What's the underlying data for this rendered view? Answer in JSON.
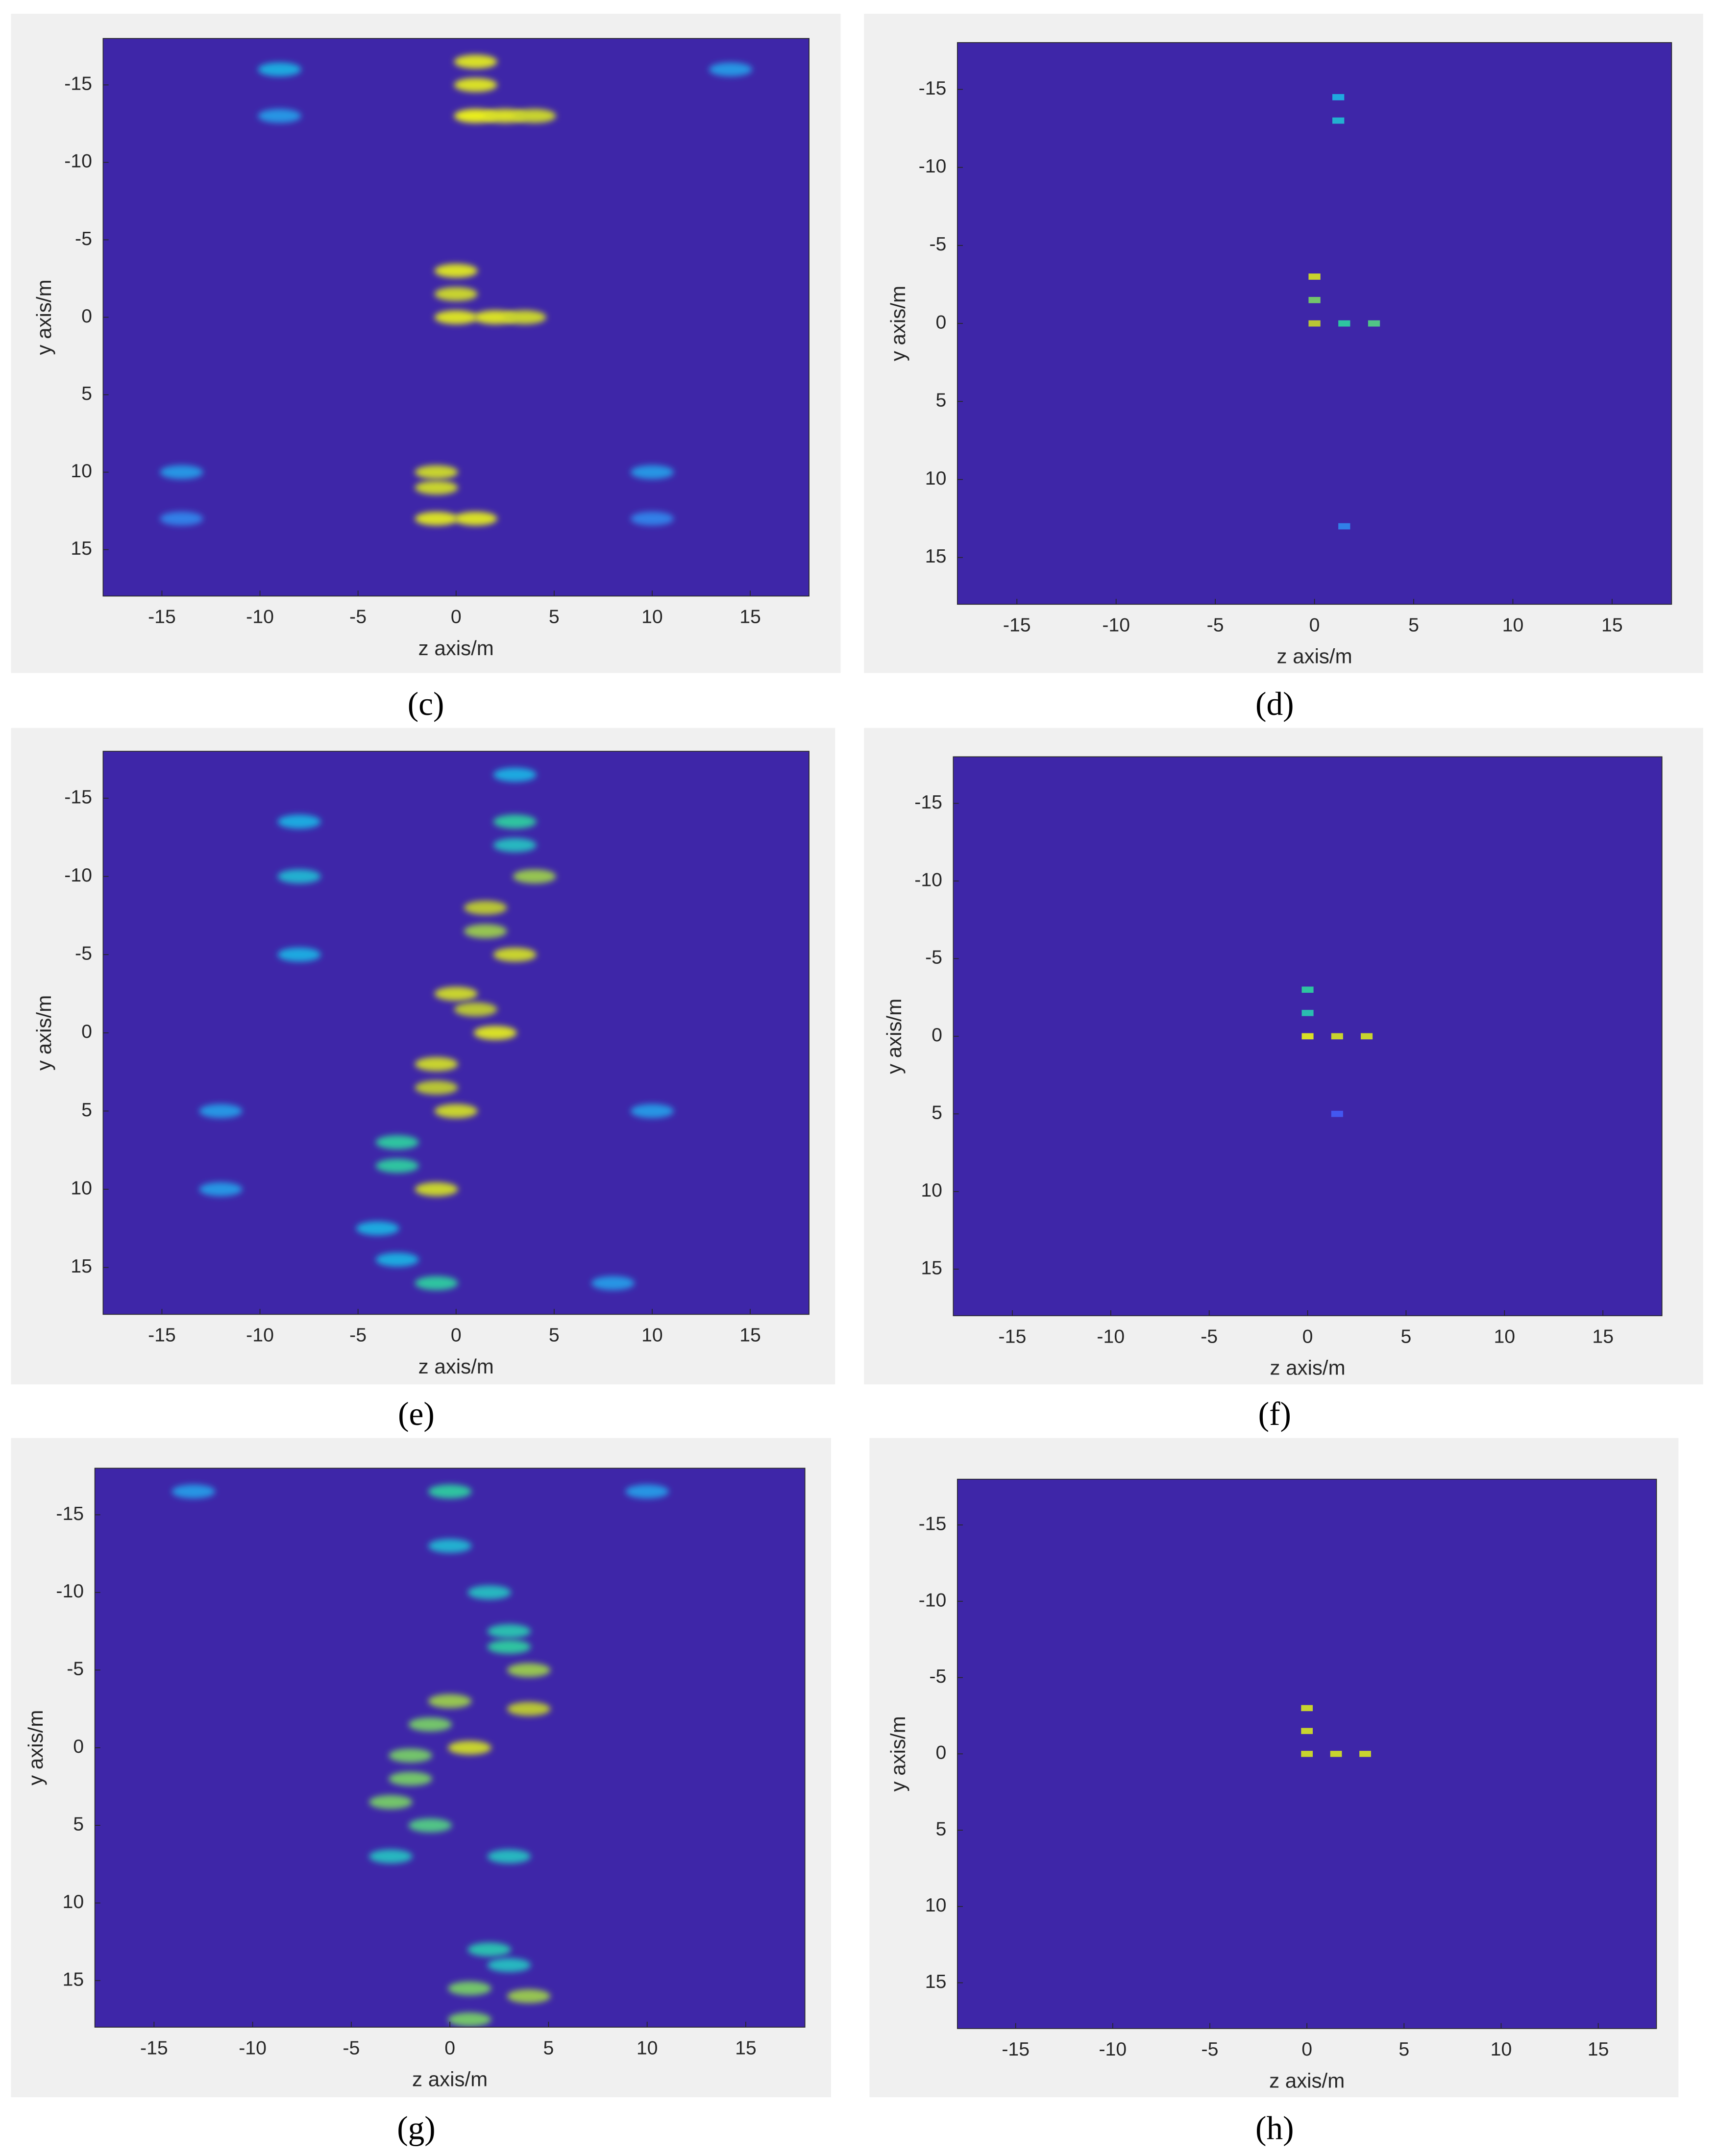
{
  "chart_data": [
    {
      "type": "heatmap",
      "caption": "(c)",
      "xlabel": "z axis/m",
      "ylabel": "y axis/m",
      "xlim": [
        -18,
        18
      ],
      "ylim": [
        -18,
        18
      ],
      "y_reversed": true,
      "xticks": [
        -15,
        -10,
        -5,
        0,
        5,
        10,
        15
      ],
      "yticks": [
        -15,
        -10,
        -5,
        0,
        5,
        10,
        15
      ],
      "smooth": true,
      "clim": [
        0,
        1
      ],
      "colormap": [
        "#3e26a8",
        "#4357f0",
        "#1fa9e0",
        "#2ec4a0",
        "#b8c536",
        "#f9fb15"
      ],
      "x": [
        1,
        1,
        1,
        2.5,
        4,
        0,
        0,
        0,
        2,
        3.5,
        -1,
        -1,
        -1,
        1,
        -9,
        -9,
        14,
        -14,
        10,
        -14,
        10
      ],
      "y": [
        -16.5,
        -15,
        -13,
        -13,
        -13,
        -3,
        -1.5,
        0,
        0,
        0,
        10,
        11,
        13,
        13,
        -16,
        -13,
        -16,
        10,
        10,
        13,
        13
      ],
      "values": [
        0.9,
        0.9,
        0.95,
        0.9,
        0.85,
        0.9,
        0.85,
        0.9,
        0.9,
        0.85,
        0.85,
        0.85,
        0.9,
        0.9,
        0.4,
        0.35,
        0.35,
        0.35,
        0.35,
        0.3,
        0.3
      ]
    },
    {
      "type": "heatmap",
      "caption": "(d)",
      "xlabel": "z axis/m",
      "ylabel": "y axis/m",
      "xlim": [
        -18,
        18
      ],
      "ylim": [
        -18,
        18
      ],
      "y_reversed": true,
      "xticks": [
        -15,
        -10,
        -5,
        0,
        5,
        10,
        15
      ],
      "yticks": [
        -15,
        -10,
        -5,
        0,
        5,
        10,
        15
      ],
      "smooth": false,
      "clim": [
        0,
        1
      ],
      "colormap": [
        "#3e26a8",
        "#4357f0",
        "#1fa9e0",
        "#2ec4a0",
        "#b8c536",
        "#f9fb15"
      ],
      "x": [
        1.2,
        1.2,
        0,
        0,
        0,
        1.5,
        3,
        1.5
      ],
      "y": [
        -14.5,
        -13,
        -3,
        -1.5,
        0,
        0,
        0,
        13
      ],
      "values": [
        0.4,
        0.45,
        0.85,
        0.7,
        0.8,
        0.6,
        0.65,
        0.3
      ]
    },
    {
      "type": "heatmap",
      "caption": "(e)",
      "xlabel": "z axis/m",
      "ylabel": "y axis/m",
      "xlim": [
        -18,
        18
      ],
      "ylim": [
        -18,
        18
      ],
      "y_reversed": true,
      "xticks": [
        -15,
        -10,
        -5,
        0,
        5,
        10,
        15
      ],
      "yticks": [
        -15,
        -10,
        -5,
        0,
        5,
        10,
        15
      ],
      "smooth": true,
      "clim": [
        0,
        1
      ],
      "colormap": [
        "#3e26a8",
        "#4357f0",
        "#1fa9e0",
        "#2ec4a0",
        "#b8c536",
        "#f9fb15"
      ],
      "x": [
        3,
        -8,
        3,
        3,
        -8,
        4,
        1.5,
        1.5,
        3,
        -8,
        0,
        1,
        2,
        -1,
        -1,
        0,
        -12,
        10,
        -3,
        -3,
        -1,
        -12,
        -4,
        -3,
        -1,
        8
      ],
      "y": [
        -16.5,
        -13.5,
        -13.5,
        -12,
        -10,
        -10,
        -8,
        -6.5,
        -5,
        -5,
        -2.5,
        -1.5,
        0,
        2,
        3.5,
        5,
        5,
        5,
        7,
        8.5,
        10,
        10,
        12.5,
        14.5,
        16,
        16
      ],
      "values": [
        0.4,
        0.4,
        0.6,
        0.5,
        0.45,
        0.75,
        0.8,
        0.75,
        0.85,
        0.4,
        0.85,
        0.8,
        0.9,
        0.85,
        0.8,
        0.85,
        0.35,
        0.35,
        0.6,
        0.6,
        0.85,
        0.35,
        0.4,
        0.4,
        0.6,
        0.35
      ]
    },
    {
      "type": "heatmap",
      "caption": "(f)",
      "xlabel": "z axis/m",
      "ylabel": "y axis/m",
      "xlim": [
        -18,
        18
      ],
      "ylim": [
        -18,
        18
      ],
      "y_reversed": true,
      "xticks": [
        -15,
        -10,
        -5,
        0,
        5,
        10,
        15
      ],
      "yticks": [
        -15,
        -10,
        -5,
        0,
        5,
        10,
        15
      ],
      "smooth": false,
      "clim": [
        0,
        1
      ],
      "colormap": [
        "#3e26a8",
        "#4357f0",
        "#1fa9e0",
        "#2ec4a0",
        "#b8c536",
        "#f9fb15"
      ],
      "x": [
        0,
        0,
        0,
        1.5,
        3,
        1.5
      ],
      "y": [
        -3,
        -1.5,
        0,
        0,
        0,
        5
      ],
      "values": [
        0.6,
        0.55,
        0.9,
        0.85,
        0.85,
        0.2
      ]
    },
    {
      "type": "heatmap",
      "caption": "(g)",
      "xlabel": "z axis/m",
      "ylabel": "y axis/m",
      "xlim": [
        -18,
        18
      ],
      "ylim": [
        -18,
        18
      ],
      "y_reversed": true,
      "xticks": [
        -15,
        -10,
        -5,
        0,
        5,
        10,
        15
      ],
      "yticks": [
        -15,
        -10,
        -5,
        0,
        5,
        10,
        15
      ],
      "smooth": true,
      "clim": [
        0,
        1
      ],
      "colormap": [
        "#3e26a8",
        "#4357f0",
        "#1fa9e0",
        "#2ec4a0",
        "#b8c536",
        "#f9fb15"
      ],
      "x": [
        0,
        -13,
        10,
        0,
        2,
        3,
        3,
        4,
        4,
        0,
        -1,
        1,
        -2,
        -2,
        -3,
        -1,
        -3,
        3,
        2,
        3,
        1,
        4,
        1
      ],
      "y": [
        -16.5,
        -16.5,
        -16.5,
        -13,
        -10,
        -7.5,
        -6.5,
        -5,
        -2.5,
        -3,
        -1.5,
        0,
        0.5,
        2,
        3.5,
        5,
        7,
        7,
        13,
        14,
        15.5,
        16,
        17.5
      ],
      "values": [
        0.6,
        0.35,
        0.35,
        0.45,
        0.5,
        0.55,
        0.6,
        0.75,
        0.8,
        0.75,
        0.7,
        0.85,
        0.7,
        0.7,
        0.7,
        0.65,
        0.5,
        0.5,
        0.55,
        0.5,
        0.7,
        0.75,
        0.7
      ]
    },
    {
      "type": "heatmap",
      "caption": "(h)",
      "xlabel": "z axis/m",
      "ylabel": "y axis/m",
      "xlim": [
        -18,
        18
      ],
      "ylim": [
        -18,
        18
      ],
      "y_reversed": true,
      "xticks": [
        -15,
        -10,
        -5,
        0,
        5,
        10,
        15
      ],
      "yticks": [
        -15,
        -10,
        -5,
        0,
        5,
        10,
        15
      ],
      "smooth": false,
      "clim": [
        0,
        1
      ],
      "colormap": [
        "#3e26a8",
        "#4357f0",
        "#1fa9e0",
        "#2ec4a0",
        "#b8c536",
        "#f9fb15"
      ],
      "x": [
        0,
        0,
        0,
        1.5,
        3
      ],
      "y": [
        -3,
        -1.5,
        0,
        0,
        0
      ],
      "values": [
        0.85,
        0.85,
        0.85,
        0.85,
        0.85
      ]
    }
  ]
}
